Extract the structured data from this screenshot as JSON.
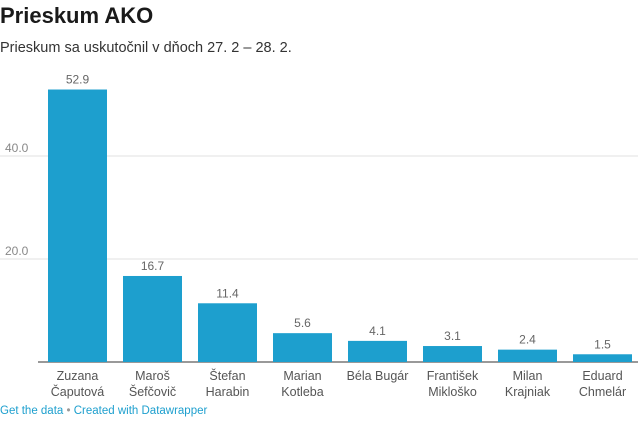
{
  "header": {
    "title": "Prieskum AKO",
    "subtitle": "Prieskum sa uskutočnil v dňoch 27. 2 – 28. 2."
  },
  "footer": {
    "get_data_label": "Get the data",
    "separator": "•",
    "created_with_label": "Created with Datawrapper"
  },
  "colors": {
    "bar": "#1d9fce",
    "gridline": "#e0e0e0",
    "axis": "#333333",
    "tick_label": "#888888",
    "value_label": "#666666",
    "category_label": "#555555",
    "link": "#1d9fce"
  },
  "chart_data": {
    "type": "bar",
    "title": "Prieskum AKO",
    "subtitle": "Prieskum sa uskutočnil v dňoch 27. 2 – 28. 2.",
    "categories": [
      [
        "Zuzana",
        "Čaputová"
      ],
      [
        "Maroš",
        "Šefčovič"
      ],
      [
        "Štefan",
        "Harabin"
      ],
      [
        "Marian",
        "Kotleba"
      ],
      [
        "Béla Bugár"
      ],
      [
        "František",
        "Mikloško"
      ],
      [
        "Milan",
        "Krajniak"
      ],
      [
        "Eduard",
        "Chmelár"
      ]
    ],
    "values": [
      52.9,
      16.7,
      11.4,
      5.6,
      4.1,
      3.1,
      2.4,
      1.5
    ],
    "value_labels": [
      "52.9",
      "16.7",
      "11.4",
      "5.6",
      "4.1",
      "3.1",
      "2.4",
      "1.5"
    ],
    "yticks": [
      20,
      40
    ],
    "ytick_labels": [
      "20.0",
      "40.0"
    ],
    "ylim": [
      0,
      53
    ],
    "grid": true,
    "legend": "none",
    "xlabel": "",
    "ylabel": ""
  }
}
